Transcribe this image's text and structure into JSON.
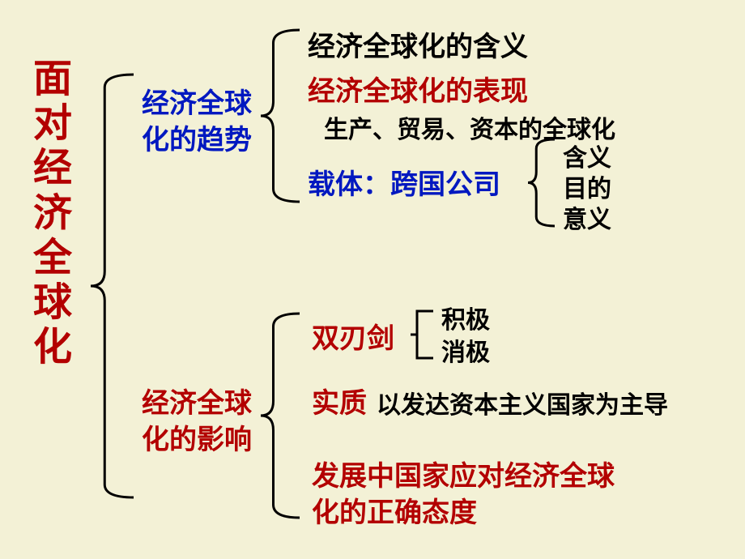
{
  "background_color": "#f3f1d6",
  "title": {
    "chars": [
      "面",
      "对",
      "经",
      "济",
      "全",
      "球",
      "化"
    ],
    "color": "#b30000",
    "fontsize": 48
  },
  "section1": {
    "label_l1": "经济全球",
    "label_l2": "化的趋势",
    "color": "#0018c0",
    "fontsize": 34
  },
  "s1_item1": {
    "text": "经济全球化的含义",
    "color": "#000000",
    "fontsize": 34
  },
  "s1_item2": {
    "text": "经济全球化的表现",
    "color": "#b30000",
    "fontsize": 34
  },
  "s1_item2sub": {
    "text": "生产、贸易、资本的全球化",
    "color": "#000000",
    "fontsize": 30
  },
  "s1_item3": {
    "text": "载体：跨国公司",
    "color": "#0018c0",
    "fontsize": 34
  },
  "s1_item3_sub1": {
    "text": "含义",
    "color": "#000000",
    "fontsize": 30
  },
  "s1_item3_sub2": {
    "text": "目的",
    "color": "#000000",
    "fontsize": 30
  },
  "s1_item3_sub3": {
    "text": "意义",
    "color": "#000000",
    "fontsize": 30
  },
  "section2": {
    "label_l1": "经济全球",
    "label_l2": "化的影响",
    "color": "#b30000",
    "fontsize": 34
  },
  "s2_item1": {
    "text": "双刃剑",
    "color": "#b30000",
    "fontsize": 34
  },
  "s2_item1_sub1": {
    "text": "积极",
    "color": "#000000",
    "fontsize": 30
  },
  "s2_item1_sub2": {
    "text": "消极",
    "color": "#000000",
    "fontsize": 30
  },
  "s2_item2a": {
    "text": "实质",
    "color": "#b30000",
    "fontsize": 34
  },
  "s2_item2b": {
    "text": "以发达资本主义国家为主导",
    "color": "#000000",
    "fontsize": 30
  },
  "s2_item3_l1": {
    "text": "发展中国家应对经济全球",
    "color": "#b30000",
    "fontsize": 34
  },
  "s2_item3_l2": {
    "text": "化的正确态度",
    "color": "#b30000",
    "fontsize": 34
  },
  "brace_stroke": "#000000",
  "brace_width": 3,
  "bracket_stroke": "#000000",
  "bracket_width": 3
}
